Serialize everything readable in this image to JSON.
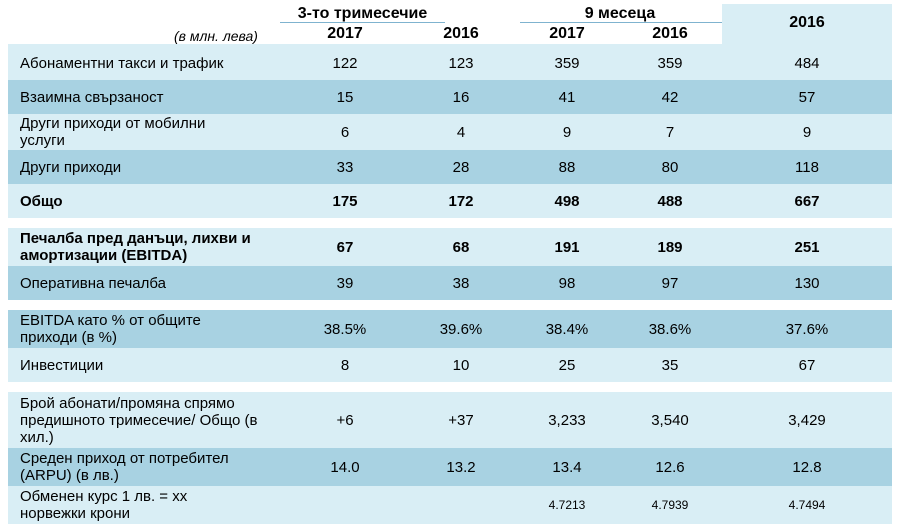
{
  "header": {
    "unit": "(в млн. лева)",
    "groups": [
      {
        "label": "3-то тримесечие",
        "years": [
          "2017",
          "2016"
        ]
      },
      {
        "label": "9 месеца",
        "years": [
          "2017",
          "2016"
        ]
      }
    ],
    "annual_year": "2016"
  },
  "rows": [
    {
      "label": "Абонаментни такси и трафик",
      "values": [
        "122",
        "123",
        "359",
        "359",
        "484"
      ]
    },
    {
      "label": "Взаимна свързаност",
      "values": [
        "15",
        "16",
        "41",
        "42",
        "57"
      ]
    },
    {
      "label": "Други приходи от мобилни услуги",
      "values": [
        "6",
        "4",
        "9",
        "7",
        "9"
      ]
    },
    {
      "label": "Други приходи",
      "values": [
        "33",
        "28",
        "88",
        "80",
        "118"
      ]
    },
    {
      "label": "Общо",
      "values": [
        "175",
        "172",
        "498",
        "488",
        "667"
      ]
    },
    {
      "label": "Печалба пред данъци, лихви и амортизации (EBITDA)",
      "values": [
        "67",
        "68",
        "191",
        "189",
        "251"
      ]
    },
    {
      "label": "Оперативна печалба",
      "values": [
        "39",
        "38",
        "98",
        "97",
        "130"
      ]
    },
    {
      "label": "EBITDA като % от общите приходи (в %)",
      "values": [
        "38.5%",
        "39.6%",
        "38.4%",
        "38.6%",
        "37.6%"
      ]
    },
    {
      "label": "Инвестиции",
      "values": [
        "8",
        "10",
        "25",
        "35",
        "67"
      ]
    },
    {
      "label": "Брой абонати/промяна спрямо предишното тримесечие/ Общо (в хил.)",
      "values": [
        "+6",
        "+37",
        "3,233",
        "3,540",
        "3,429"
      ]
    },
    {
      "label": "Среден приход от потребител (ARPU) (в лв.)",
      "values": [
        "14.0",
        "13.2",
        "13.4",
        "12.6",
        "12.8"
      ]
    },
    {
      "label": "Обменен курс 1 лв. = хх норвежки крони",
      "values": [
        "",
        "",
        "4.7213",
        "4.7939",
        "4.7494"
      ]
    }
  ]
}
